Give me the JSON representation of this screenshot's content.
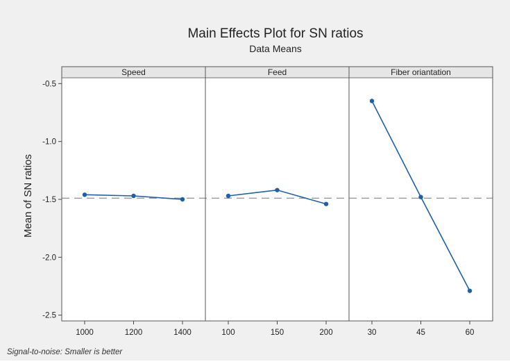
{
  "chart_data": {
    "type": "line",
    "title": "Main Effects Plot for SN ratios",
    "subtitle": "Data Means",
    "ylabel": "Mean of SN ratios",
    "ylim": [
      -2.55,
      -0.45
    ],
    "yticks": [
      -0.5,
      -1.0,
      -1.5,
      -2.0,
      -2.5
    ],
    "ytick_labels": [
      "-0.5",
      "-1.0",
      "-1.5",
      "-2.0",
      "-2.5"
    ],
    "reference_mean": -1.49,
    "footnote": "Signal-to-noise: Smaller is better",
    "line_color": "#1f5faa",
    "reference_color": "#9a9a9a",
    "background_color": "#f0f0f0",
    "panels": [
      {
        "name": "Speed",
        "levels": [
          "1000",
          "1200",
          "1400"
        ],
        "values": [
          -1.46,
          -1.47,
          -1.5
        ]
      },
      {
        "name": "Feed",
        "levels": [
          "100",
          "150",
          "200"
        ],
        "values": [
          -1.47,
          -1.42,
          -1.54
        ]
      },
      {
        "name": "Fiber oriantation",
        "levels": [
          "30",
          "45",
          "60"
        ],
        "values": [
          -0.65,
          -1.48,
          -2.29
        ]
      }
    ]
  }
}
